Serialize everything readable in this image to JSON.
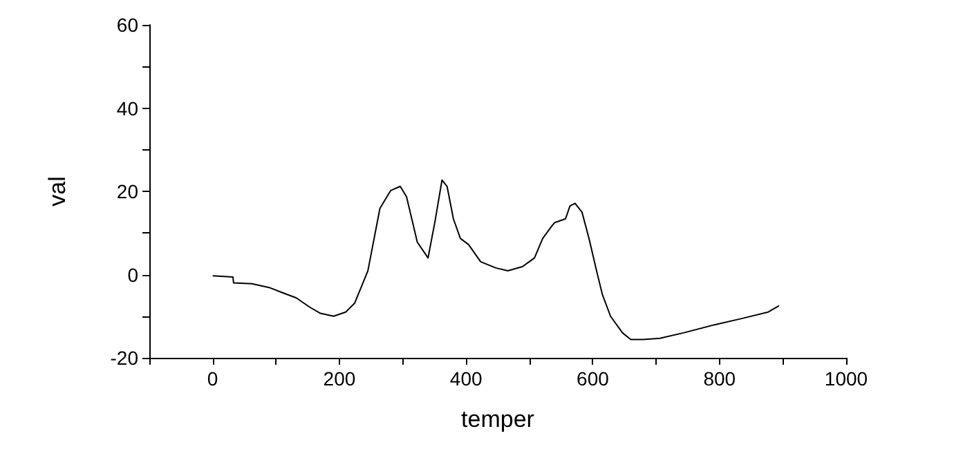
{
  "chart_data": {
    "type": "line",
    "xlabel": "temper",
    "ylabel": "val",
    "xlim": [
      -100,
      1000
    ],
    "xticks": [
      {
        "value": -100,
        "label": null
      },
      0,
      {
        "value": 100,
        "label": null
      },
      200,
      {
        "value": 300,
        "label": null
      },
      400,
      {
        "value": 500,
        "label": null
      },
      600,
      {
        "value": 700,
        "label": null
      },
      800,
      {
        "value": 900,
        "label": null
      },
      1000
    ],
    "ylim": [
      -20,
      60
    ],
    "yticks": [
      -20,
      {
        "value": -10,
        "label": null
      },
      0,
      {
        "value": 10,
        "label": null
      },
      20,
      {
        "value": 30,
        "label": null
      },
      40,
      {
        "value": 50,
        "label": null
      },
      60
    ],
    "grid": false,
    "marker": "none",
    "line_style": "solid",
    "series": [
      {
        "color": "#000000",
        "x": [
          0,
          32,
          33,
          62,
          89,
          111,
          132,
          153,
          170,
          191,
          210,
          224,
          245,
          264,
          281,
          296,
          306,
          323,
          340,
          351,
          362,
          370,
          380,
          391,
          404,
          423,
          447,
          466,
          489,
          508,
          521,
          536,
          540,
          557,
          564,
          572,
          583,
          594,
          606,
          615,
          628,
          647,
          660,
          679,
          706,
          743,
          791,
          834,
          877,
          894
        ],
        "values": [
          -0.3,
          -0.6,
          -2,
          -2.2,
          -3.1,
          -4.4,
          -5.6,
          -7.8,
          -9.3,
          -10,
          -9,
          -6.9,
          0.9,
          15.9,
          20.2,
          21.2,
          18.7,
          7.8,
          4,
          12.8,
          22.7,
          21.2,
          13.4,
          8.7,
          7.2,
          3.1,
          1.6,
          0.9,
          1.9,
          4,
          8.7,
          11.8,
          12.5,
          13.4,
          16.5,
          17.1,
          15,
          8.7,
          0.9,
          -4.7,
          -10,
          -14,
          -15.6,
          -15.6,
          -15.3,
          -14,
          -12.1,
          -10.6,
          -9,
          -7.5
        ]
      }
    ]
  }
}
